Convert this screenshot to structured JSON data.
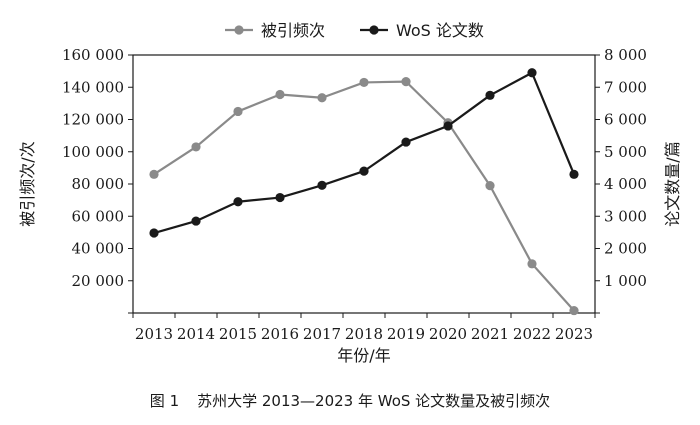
{
  "chart_data": {
    "type": "line",
    "x": [
      "2013",
      "2014",
      "2015",
      "2016",
      "2017",
      "2018",
      "2019",
      "2020",
      "2021",
      "2022",
      "2023"
    ],
    "series": [
      {
        "name": "被引频次",
        "axis": "left",
        "color": "#8a8a8a",
        "values": [
          86000,
          103000,
          125000,
          135500,
          133500,
          143000,
          143500,
          118000,
          79000,
          30500,
          1500
        ]
      },
      {
        "name": "WoS 论文数",
        "axis": "right",
        "color": "#1a1a1a",
        "values": [
          2480,
          2850,
          3450,
          3580,
          3960,
          4400,
          5300,
          5800,
          6750,
          7450,
          4300
        ]
      }
    ],
    "xlabel": "年份/年",
    "ylabel_left": "被引频次/次",
    "ylabel_right": "论文数量/篇",
    "ylim_left": [
      0,
      160000
    ],
    "ylim_right": [
      0,
      8000
    ],
    "yticks_left": [
      "",
      "20 000",
      "40 000",
      "60 000",
      "80 000",
      "100 000",
      "120 000",
      "140 000",
      "160 000"
    ],
    "yticks_right": [
      "",
      "1 000",
      "2 000",
      "3 000",
      "4 000",
      "5 000",
      "6 000",
      "7 000",
      "8 000"
    ],
    "legend_position": "top-center",
    "grid": false
  },
  "caption": {
    "label": "图 1",
    "text": "苏州大学 2013—2023 年 WoS 论文数量及被引频次"
  }
}
